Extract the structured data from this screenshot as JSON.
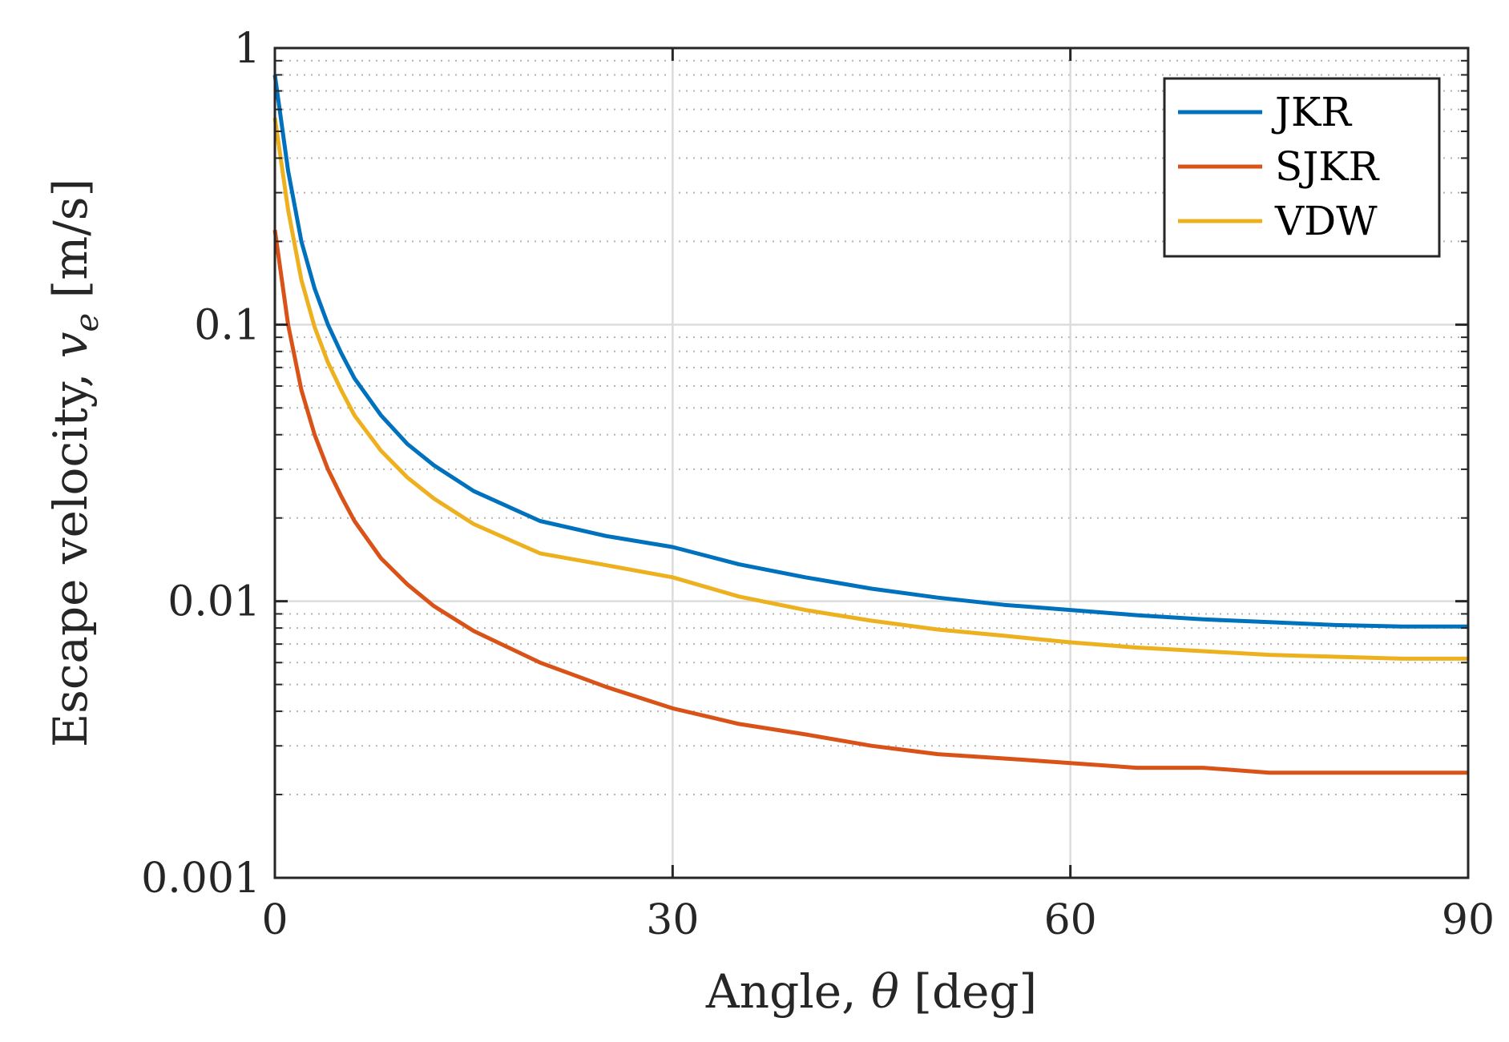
{
  "chart_data": {
    "type": "line",
    "title": "",
    "xlabel": {
      "prefix": "Angle, ",
      "symbol": "θ",
      "suffix": " [deg]"
    },
    "ylabel": {
      "prefix": "Escape velocity, ",
      "symbol": "v",
      "subscript": "e",
      "suffix": " [m/s]"
    },
    "xscale": "linear",
    "yscale": "log",
    "xlim": [
      0,
      90
    ],
    "ylim": [
      0.001,
      1
    ],
    "xticks": [
      0,
      30,
      60,
      90
    ],
    "xtick_labels": [
      "0",
      "30",
      "60",
      "90"
    ],
    "yticks": [
      0.001,
      0.01,
      0.1,
      1
    ],
    "ytick_labels": [
      "0.001",
      "0.01",
      "0.1",
      "1"
    ],
    "grid": {
      "major": true,
      "minor_y": true
    },
    "legend": {
      "position": "top-right"
    },
    "x": [
      0,
      1,
      2,
      3,
      4,
      5,
      6,
      8,
      10,
      12,
      15,
      20,
      25,
      30,
      35,
      40,
      45,
      50,
      55,
      60,
      65,
      70,
      75,
      80,
      85,
      90
    ],
    "series": [
      {
        "name": "JKR",
        "color": "#0072BD",
        "values": [
          0.8,
          0.36,
          0.2,
          0.135,
          0.1,
          0.079,
          0.064,
          0.047,
          0.037,
          0.031,
          0.025,
          0.0195,
          0.0172,
          0.0157,
          0.0136,
          0.0122,
          0.0111,
          0.0103,
          0.0097,
          0.0093,
          0.0089,
          0.0086,
          0.0084,
          0.0082,
          0.0081,
          0.0081
        ]
      },
      {
        "name": "SJKR",
        "color": "#D95319",
        "values": [
          0.22,
          0.1,
          0.058,
          0.04,
          0.03,
          0.024,
          0.0195,
          0.0143,
          0.0115,
          0.0096,
          0.0078,
          0.006,
          0.0049,
          0.0041,
          0.0036,
          0.0033,
          0.003,
          0.0028,
          0.0027,
          0.0026,
          0.0025,
          0.0025,
          0.0024,
          0.0024,
          0.0024,
          0.0024
        ]
      },
      {
        "name": "VDW",
        "color": "#EDB120",
        "values": [
          0.56,
          0.26,
          0.145,
          0.098,
          0.073,
          0.058,
          0.047,
          0.035,
          0.028,
          0.0235,
          0.019,
          0.0149,
          0.0135,
          0.0122,
          0.0104,
          0.0093,
          0.0085,
          0.0079,
          0.0075,
          0.0071,
          0.0068,
          0.0066,
          0.0064,
          0.0063,
          0.0062,
          0.0062
        ]
      }
    ]
  }
}
